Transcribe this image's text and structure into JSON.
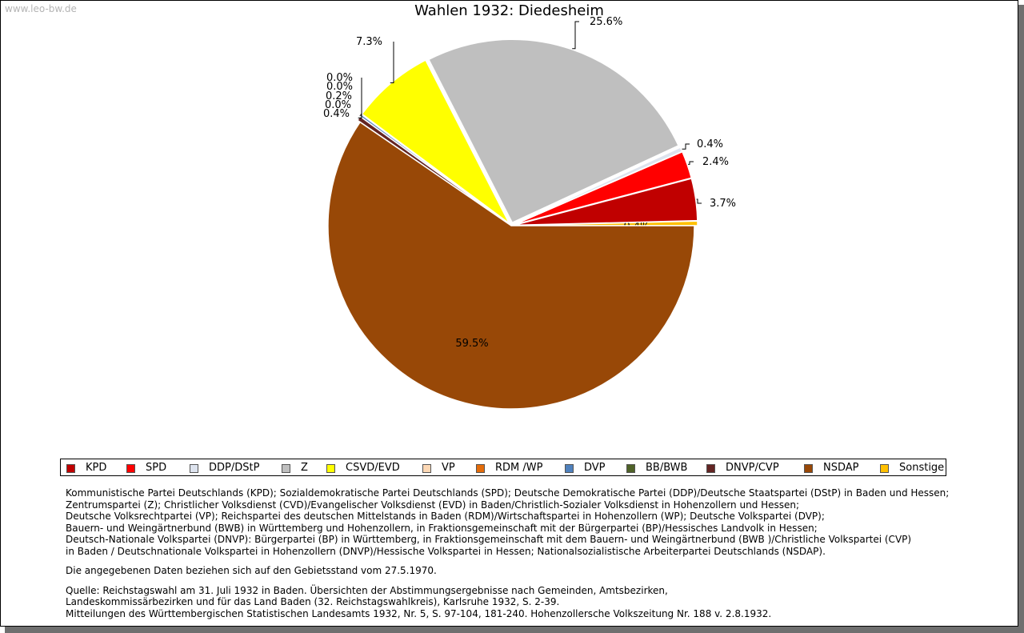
{
  "watermark": "www.leo-bw.de",
  "title": "Wahlen 1932: Diedesheim",
  "chart_data": {
    "type": "pie",
    "title": "Wahlen 1932: Diedesheim",
    "slices": [
      {
        "name": "Sonstige",
        "value": 0.4,
        "label": "0.4%",
        "color": "#ffc000"
      },
      {
        "name": "KPD",
        "value": 3.7,
        "label": "3.7%",
        "color": "#c00000"
      },
      {
        "name": "SPD",
        "value": 2.4,
        "label": "2.4%",
        "color": "#ff0000"
      },
      {
        "name": "DDP/DStP",
        "value": 0.4,
        "label": "0.4%",
        "color": "#dde3ee"
      },
      {
        "name": "Z",
        "value": 25.6,
        "label": "25.6%",
        "color": "#bfbfbf"
      },
      {
        "name": "CSVD/EVD",
        "value": 7.3,
        "label": "7.3%",
        "color": "#ffff00"
      },
      {
        "name": "VP",
        "value": 0.0,
        "label": "0.0%",
        "color": "#fdd8b5"
      },
      {
        "name": "RDM /WP",
        "value": 0.0,
        "label": "0.0%",
        "color": "#e46c0a"
      },
      {
        "name": "DVP",
        "value": 0.2,
        "label": "0.2%",
        "color": "#4f81bd"
      },
      {
        "name": "BB/BWB",
        "value": 0.0,
        "label": "0.0%",
        "color": "#4f6228"
      },
      {
        "name": "DNVP/CVP",
        "value": 0.4,
        "label": "0.4%",
        "color": "#632523"
      },
      {
        "name": "NSDAP",
        "value": 59.5,
        "label": "59.5%",
        "color": "#984807"
      }
    ],
    "legend": [
      "KPD",
      "SPD",
      "DDP/DStP",
      "Z",
      "CSVD/EVD",
      "VP",
      "RDM /WP",
      "DVP",
      "BB/BWB",
      "DNVP/CVP",
      "NSDAP",
      "Sonstige"
    ],
    "legend_position": "bottom"
  },
  "notes": {
    "parties": [
      "Kommunistische Partei Deutschlands (KPD); Sozialdemokratische Partei Deutschlands (SPD); Deutsche Demokratische Partei (DDP)/Deutsche Staatspartei (DStP) in Baden und Hessen;",
      "Zentrumspartei (Z); Christlicher Volksdienst (CVD)/Evangelischer Volksdienst (EVD) in Baden/Christlich-Sozialer Volksdienst in Hohenzollern und Hessen;",
      "Deutsche Volksrechtpartei (VP); Reichspartei des deutschen Mittelstands in Baden (RDM)/Wirtschaftspartei in Hohenzollern (WP); Deutsche Volkspartei (DVP);",
      "Bauern- und Weingärtnerbund (BWB) in Württemberg und Hohenzollern, in Fraktionsgemeinschaft mit der Bürgerpartei (BP)/Hessisches Landvolk in Hessen;",
      "Deutsch-Nationale Volkspartei (DNVP): Bürgerpartei (BP) in Württemberg, in Fraktionsgemeinschaft mit dem Bauern- und Weingärtnerbund (BWB )/Christliche Volkspartei (CVP)",
      "in Baden / Deutschnationale Volkspartei in Hohenzollern (DNVP)/Hessische Volkspartei in Hessen; Nationalsozialistische Arbeiterpartei Deutschlands (NSDAP)."
    ],
    "territory": "Die angegebenen Daten beziehen sich auf den Gebietsstand vom 27.5.1970.",
    "source": [
      "Quelle: Reichstagswahl am 31. Juli 1932 in Baden. Übersichten der Abstimmungsergebnisse nach Gemeinden, Amtsbezirken,",
      "Landeskommissärbezirken und für das Land Baden (32. Reichstagswahlkreis), Karlsruhe 1932, S. 2-39.",
      "Mitteilungen des Württembergischen Statistischen Landesamts 1932, Nr. 5, S. 97-104, 181-240. Hohenzollersche Volkszeitung Nr. 188 v. 2.8.1932."
    ]
  }
}
